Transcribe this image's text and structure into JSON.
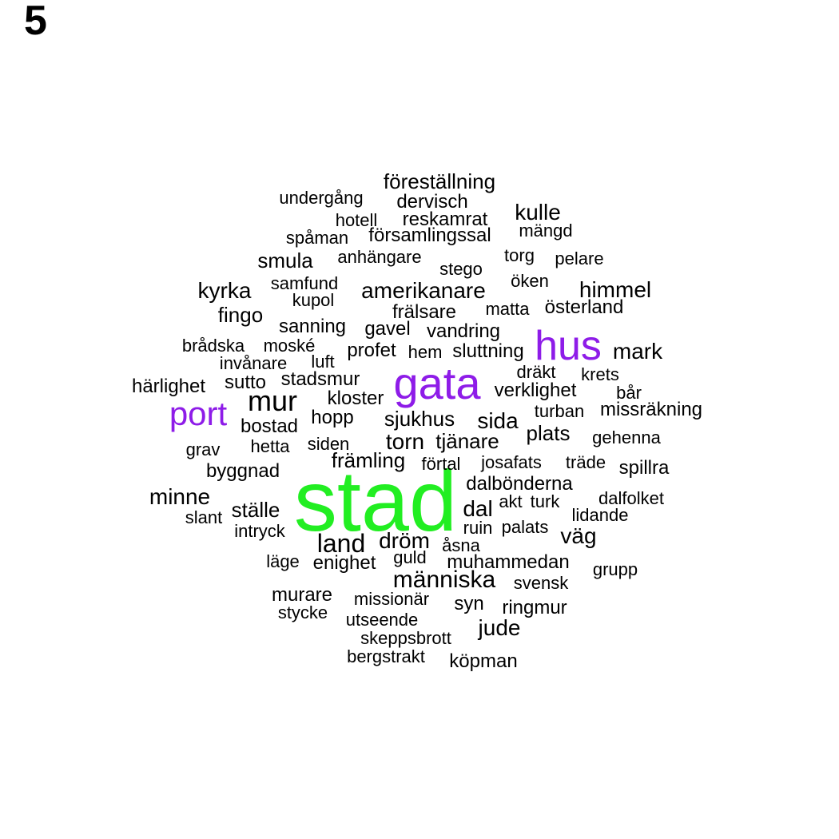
{
  "panel_label": "5",
  "colors": {
    "large": "#22ee22",
    "medium": "#8e1ce8",
    "small": "#000000"
  },
  "words": [
    {
      "text": "stad",
      "size": "large"
    },
    {
      "text": "gata",
      "size": "medium"
    },
    {
      "text": "hus",
      "size": "medium"
    },
    {
      "text": "port",
      "size": "medium"
    },
    {
      "text": "föreställning",
      "size": "small"
    },
    {
      "text": "undergång",
      "size": "small"
    },
    {
      "text": "dervisch",
      "size": "small"
    },
    {
      "text": "hotell",
      "size": "small"
    },
    {
      "text": "reskamrat",
      "size": "small"
    },
    {
      "text": "kulle",
      "size": "small"
    },
    {
      "text": "spåman",
      "size": "small"
    },
    {
      "text": "församlingssal",
      "size": "small"
    },
    {
      "text": "mängd",
      "size": "small"
    },
    {
      "text": "smula",
      "size": "small"
    },
    {
      "text": "anhängare",
      "size": "small"
    },
    {
      "text": "torg",
      "size": "small"
    },
    {
      "text": "pelare",
      "size": "small"
    },
    {
      "text": "stego",
      "size": "small"
    },
    {
      "text": "samfund",
      "size": "small"
    },
    {
      "text": "öken",
      "size": "small"
    },
    {
      "text": "kyrka",
      "size": "small"
    },
    {
      "text": "amerikanare",
      "size": "small"
    },
    {
      "text": "himmel",
      "size": "small"
    },
    {
      "text": "kupol",
      "size": "small"
    },
    {
      "text": "fingo",
      "size": "small"
    },
    {
      "text": "frälsare",
      "size": "small"
    },
    {
      "text": "matta",
      "size": "small"
    },
    {
      "text": "österland",
      "size": "small"
    },
    {
      "text": "sanning",
      "size": "small"
    },
    {
      "text": "gavel",
      "size": "small"
    },
    {
      "text": "vandring",
      "size": "small"
    },
    {
      "text": "brådska",
      "size": "small"
    },
    {
      "text": "moské",
      "size": "small"
    },
    {
      "text": "profet",
      "size": "small"
    },
    {
      "text": "hem",
      "size": "small"
    },
    {
      "text": "sluttning",
      "size": "small"
    },
    {
      "text": "mark",
      "size": "small"
    },
    {
      "text": "invånare",
      "size": "small"
    },
    {
      "text": "luft",
      "size": "small"
    },
    {
      "text": "dräkt",
      "size": "small"
    },
    {
      "text": "krets",
      "size": "small"
    },
    {
      "text": "härlighet",
      "size": "small"
    },
    {
      "text": "sutto",
      "size": "small"
    },
    {
      "text": "stadsmur",
      "size": "small"
    },
    {
      "text": "verklighet",
      "size": "small"
    },
    {
      "text": "bår",
      "size": "small"
    },
    {
      "text": "mur",
      "size": "small"
    },
    {
      "text": "kloster",
      "size": "small"
    },
    {
      "text": "turban",
      "size": "small"
    },
    {
      "text": "missräkning",
      "size": "small"
    },
    {
      "text": "hopp",
      "size": "small"
    },
    {
      "text": "sjukhus",
      "size": "small"
    },
    {
      "text": "sida",
      "size": "small"
    },
    {
      "text": "bostad",
      "size": "small"
    },
    {
      "text": "plats",
      "size": "small"
    },
    {
      "text": "gehenna",
      "size": "small"
    },
    {
      "text": "grav",
      "size": "small"
    },
    {
      "text": "hetta",
      "size": "small"
    },
    {
      "text": "siden",
      "size": "small"
    },
    {
      "text": "torn",
      "size": "small"
    },
    {
      "text": "tjänare",
      "size": "small"
    },
    {
      "text": "främling",
      "size": "small"
    },
    {
      "text": "förtal",
      "size": "small"
    },
    {
      "text": "josafats",
      "size": "small"
    },
    {
      "text": "träde",
      "size": "small"
    },
    {
      "text": "spillra",
      "size": "small"
    },
    {
      "text": "byggnad",
      "size": "small"
    },
    {
      "text": "dalbönderna",
      "size": "small"
    },
    {
      "text": "minne",
      "size": "small"
    },
    {
      "text": "akt",
      "size": "small"
    },
    {
      "text": "turk",
      "size": "small"
    },
    {
      "text": "dalfolket",
      "size": "small"
    },
    {
      "text": "ställe",
      "size": "small"
    },
    {
      "text": "dal",
      "size": "small"
    },
    {
      "text": "lidande",
      "size": "small"
    },
    {
      "text": "slant",
      "size": "small"
    },
    {
      "text": "ruin",
      "size": "small"
    },
    {
      "text": "palats",
      "size": "small"
    },
    {
      "text": "intryck",
      "size": "small"
    },
    {
      "text": "väg",
      "size": "small"
    },
    {
      "text": "land",
      "size": "small"
    },
    {
      "text": "dröm",
      "size": "small"
    },
    {
      "text": "åsna",
      "size": "small"
    },
    {
      "text": "guld",
      "size": "small"
    },
    {
      "text": "läge",
      "size": "small"
    },
    {
      "text": "enighet",
      "size": "small"
    },
    {
      "text": "muhammedan",
      "size": "small"
    },
    {
      "text": "grupp",
      "size": "small"
    },
    {
      "text": "människa",
      "size": "small"
    },
    {
      "text": "svensk",
      "size": "small"
    },
    {
      "text": "murare",
      "size": "small"
    },
    {
      "text": "missionär",
      "size": "small"
    },
    {
      "text": "syn",
      "size": "small"
    },
    {
      "text": "ringmur",
      "size": "small"
    },
    {
      "text": "stycke",
      "size": "small"
    },
    {
      "text": "utseende",
      "size": "small"
    },
    {
      "text": "jude",
      "size": "small"
    },
    {
      "text": "skeppsbrott",
      "size": "small"
    },
    {
      "text": "bergstrakt",
      "size": "small"
    },
    {
      "text": "köpman",
      "size": "small"
    }
  ]
}
